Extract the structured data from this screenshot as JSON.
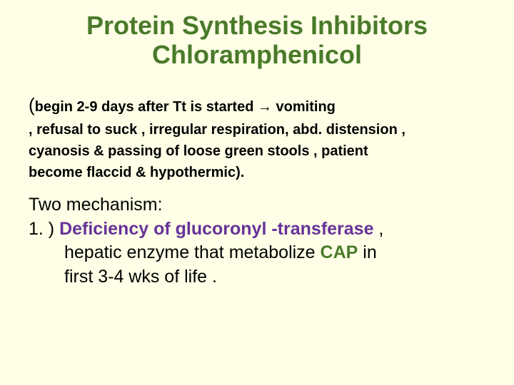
{
  "colors": {
    "background": "#feffe6",
    "title": "#4a7a2a",
    "body_text": "#000000",
    "purple_highlight": "#663399",
    "green_bold": "#4a7a2a"
  },
  "typography": {
    "title_fontsize": 36,
    "symptom_fontsize": 20,
    "mechanism_fontsize": 25,
    "font_family": "Arial"
  },
  "title_line1": "Protein Synthesis Inhibitors",
  "title_line2": "Chloramphenicol",
  "symptom": {
    "open_paren": "(",
    "line1": "begin 2-9 days after Tt is started → vomiting",
    "line2": ", refusal to suck , irregular respiration, abd. distension ,",
    "line3": " cyanosis & passing of loose green stools ,  patient",
    "line4": " become flaccid & hypothermic)."
  },
  "mechanism": {
    "heading": " Two mechanism:",
    "item1_num": "1. ) ",
    "item1_highlight": "Deficiency of glucoronyl -transferase",
    "item1_rest1": " ,",
    "item1_cont1_a": "hepatic enzyme that metabolize ",
    "item1_cap": "CAP",
    "item1_cont1_b": " in",
    "item1_cont2": "first 3-4 wks of life ."
  }
}
